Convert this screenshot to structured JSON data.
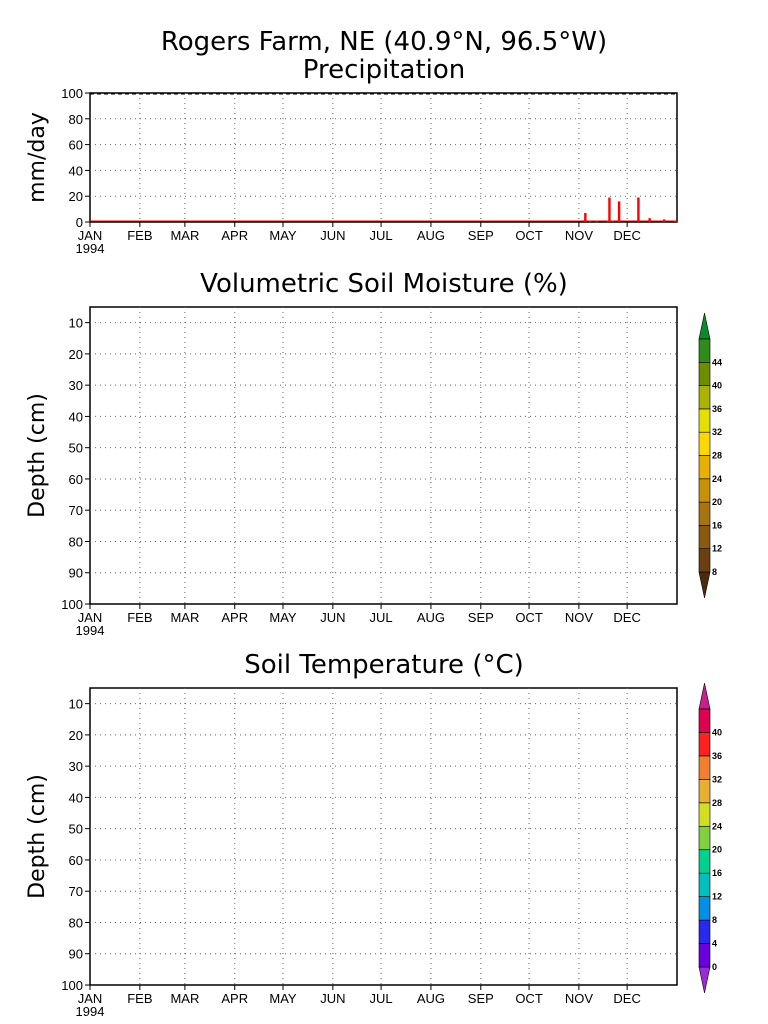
{
  "page": {
    "title_line1": "Rogers Farm, NE (40.9°N, 96.5°W)",
    "title_line2": "Precipitation"
  },
  "chart_data": [
    {
      "type": "bar",
      "title": "Precipitation",
      "ylabel": "mm/day",
      "ylim": [
        0,
        100
      ],
      "yticks": [
        0,
        20,
        40,
        60,
        80,
        100
      ],
      "months": [
        "JAN",
        "FEB",
        "MAR",
        "APR",
        "MAY",
        "JUN",
        "JUL",
        "AUG",
        "SEP",
        "OCT",
        "NOV",
        "DEC"
      ],
      "year_label": "1994",
      "grid": true,
      "bar_color": "#ff0000",
      "x": [
        308,
        311,
        315,
        322,
        323,
        325,
        329,
        341,
        348,
        357,
        364
      ],
      "values": [
        7,
        1,
        1,
        1,
        19,
        1,
        16,
        19,
        3,
        2,
        1
      ]
    },
    {
      "type": "heatmap",
      "title": "Volumetric Soil Moisture (%)",
      "ylabel": "Depth (cm)",
      "ylim": [
        100,
        5
      ],
      "yticks": [
        10,
        20,
        30,
        40,
        50,
        60,
        70,
        80,
        90,
        100
      ],
      "months": [
        "JAN",
        "FEB",
        "MAR",
        "APR",
        "MAY",
        "JUN",
        "JUL",
        "AUG",
        "SEP",
        "OCT",
        "NOV",
        "DEC"
      ],
      "year_label": "1994",
      "grid": true,
      "colorbar": {
        "labels": [
          "8",
          "12",
          "16",
          "20",
          "24",
          "28",
          "32",
          "36",
          "40",
          "44"
        ],
        "colors": [
          "#4a2c0c",
          "#6b3f10",
          "#8b5a12",
          "#a87410",
          "#c79208",
          "#e8b000",
          "#ffd700",
          "#e6e000",
          "#a8b400",
          "#6e8e00",
          "#2f8c1a",
          "#0a8a2a"
        ]
      }
    },
    {
      "type": "heatmap",
      "title": "Soil Temperature (°C)",
      "ylabel": "Depth (cm)",
      "ylim": [
        100,
        5
      ],
      "yticks": [
        10,
        20,
        30,
        40,
        50,
        60,
        70,
        80,
        90,
        100
      ],
      "months": [
        "JAN",
        "FEB",
        "MAR",
        "APR",
        "MAY",
        "JUN",
        "JUL",
        "AUG",
        "SEP",
        "OCT",
        "NOV",
        "DEC"
      ],
      "year_label": "1994",
      "grid": true,
      "colorbar": {
        "labels": [
          "0",
          "4",
          "8",
          "12",
          "16",
          "20",
          "24",
          "28",
          "32",
          "36",
          "40"
        ],
        "colors": [
          "#9a2cd8",
          "#6a00e0",
          "#2828f0",
          "#0090e8",
          "#00c0c0",
          "#00d090",
          "#80d040",
          "#d0e020",
          "#e8b030",
          "#f08030",
          "#ff2020",
          "#e00050",
          "#c8208a"
        ]
      }
    }
  ]
}
